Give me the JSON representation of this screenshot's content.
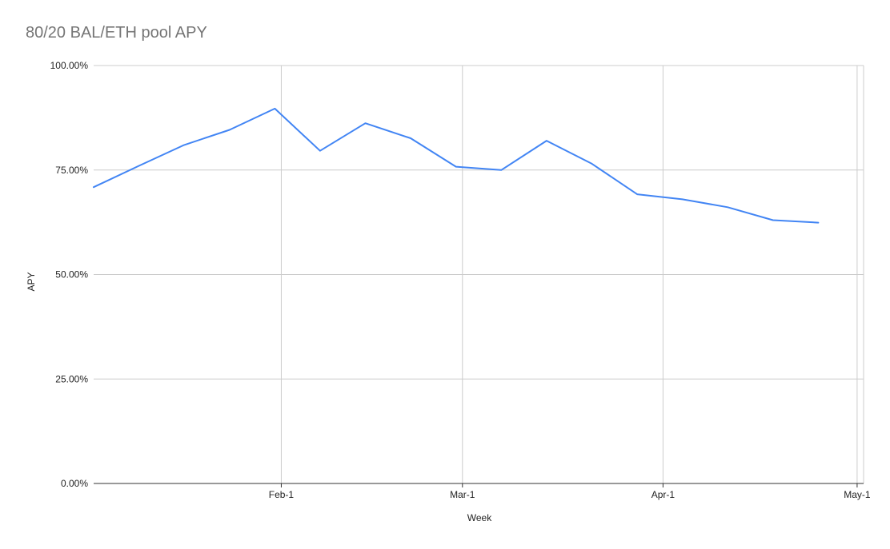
{
  "chart_data": {
    "type": "line",
    "title": "80/20 BAL/ETH pool APY",
    "xlabel": "Week",
    "ylabel": "APY",
    "x_axis": {
      "type": "date",
      "range": [
        "2021-01-03",
        "2021-05-02"
      ],
      "ticks": [
        {
          "date": "2021-02-01",
          "label": "Feb-1"
        },
        {
          "date": "2021-03-01",
          "label": "Mar-1"
        },
        {
          "date": "2021-04-01",
          "label": "Apr-1"
        },
        {
          "date": "2021-05-01",
          "label": "May-1"
        }
      ]
    },
    "y_axis": {
      "ylim": [
        0,
        1
      ],
      "ticks": [
        {
          "value": 0,
          "label": "0.00%"
        },
        {
          "value": 0.25,
          "label": "25.00%"
        },
        {
          "value": 0.5,
          "label": "50.00%"
        },
        {
          "value": 0.75,
          "label": "75.00%"
        },
        {
          "value": 1,
          "label": "100.00%"
        }
      ]
    },
    "grid": true,
    "legend": "none",
    "series": [
      {
        "color": "#4285f4",
        "points": [
          {
            "x": "2021-01-03",
            "y": 0.709
          },
          {
            "x": "2021-01-10",
            "y": 0.76
          },
          {
            "x": "2021-01-17",
            "y": 0.81
          },
          {
            "x": "2021-01-24",
            "y": 0.846
          },
          {
            "x": "2021-01-31",
            "y": 0.897
          },
          {
            "x": "2021-02-07",
            "y": 0.796
          },
          {
            "x": "2021-02-14",
            "y": 0.862
          },
          {
            "x": "2021-02-21",
            "y": 0.826
          },
          {
            "x": "2021-02-28",
            "y": 0.758
          },
          {
            "x": "2021-03-07",
            "y": 0.75
          },
          {
            "x": "2021-03-14",
            "y": 0.82
          },
          {
            "x": "2021-03-21",
            "y": 0.765
          },
          {
            "x": "2021-03-28",
            "y": 0.692
          },
          {
            "x": "2021-04-04",
            "y": 0.68
          },
          {
            "x": "2021-04-11",
            "y": 0.661
          },
          {
            "x": "2021-04-18",
            "y": 0.63
          },
          {
            "x": "2021-04-25",
            "y": 0.624
          }
        ]
      }
    ]
  }
}
